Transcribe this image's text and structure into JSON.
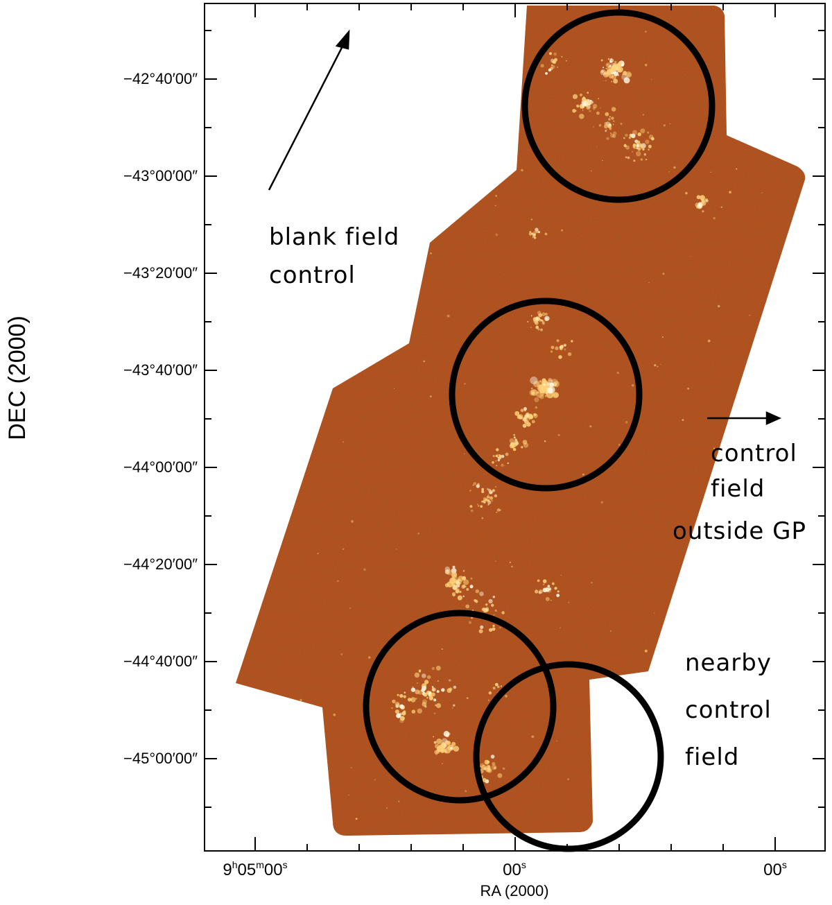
{
  "figure": {
    "axes": {
      "y_label": "DEC (2000)",
      "x_label": "RA (2000)",
      "y_ticks": [
        "−42°40′00″",
        "−43°00′00″",
        "−43°20′00″",
        "−43°40′00″",
        "−44°00′00″",
        "−44°20′00″",
        "−44°40′00″",
        "−45°00′00″"
      ],
      "x_ticks": [
        {
          "h": "9",
          "m": "05",
          "s": "00"
        },
        {
          "h": "",
          "m": "",
          "s": "00"
        },
        {
          "h": "",
          "m": "",
          "s": "00"
        }
      ]
    },
    "annotations": {
      "blank_field": [
        "blank field",
        "control"
      ],
      "outside_gp": [
        "control",
        "field",
        "outside GP"
      ],
      "nearby": [
        "nearby",
        "control",
        "field"
      ]
    },
    "colors": {
      "map_base": "#b34d1a",
      "map_dark": "#5a1e06",
      "emission": "#ffd27a",
      "emission_peak": "#fff8e6",
      "circle": "#000000"
    }
  }
}
